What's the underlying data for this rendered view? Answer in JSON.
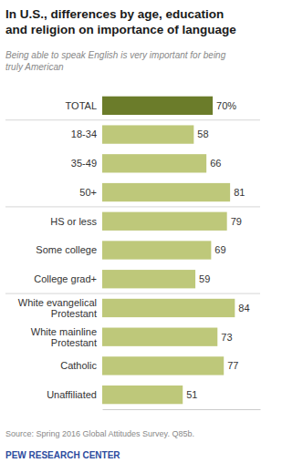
{
  "chart_data": {
    "type": "bar",
    "orientation": "horizontal",
    "title": "In U.S., differences by age, education\nand religion on importance of language",
    "subtitle": "Being able to speak English is very important for being\ntruly American",
    "categories": [
      "TOTAL",
      "18-34",
      "35-49",
      "50+",
      "HS or less",
      "Some college",
      "College grad+",
      "White evangelical\nProtestant",
      "White mainline\nProtestant",
      "Catholic",
      "Unaffiliated"
    ],
    "values": [
      70,
      58,
      66,
      81,
      79,
      69,
      59,
      84,
      73,
      77,
      51
    ],
    "value_labels": [
      "70%",
      "58",
      "66",
      "81",
      "79",
      "69",
      "59",
      "84",
      "73",
      "77",
      "51"
    ],
    "colors": [
      "#6b7c2a",
      "#bec87a",
      "#bec87a",
      "#bec87a",
      "#bec87a",
      "#bec87a",
      "#bec87a",
      "#bec87a",
      "#bec87a",
      "#bec87a",
      "#bec87a"
    ],
    "xlim": [
      0,
      100
    ],
    "data_labels": true,
    "tick_labels": false,
    "grid": false,
    "annotations": [
      "Source: Spring 2016 Global Attitudes Survey. Q85b.",
      "PEW RESEARCH CENTER"
    ]
  }
}
